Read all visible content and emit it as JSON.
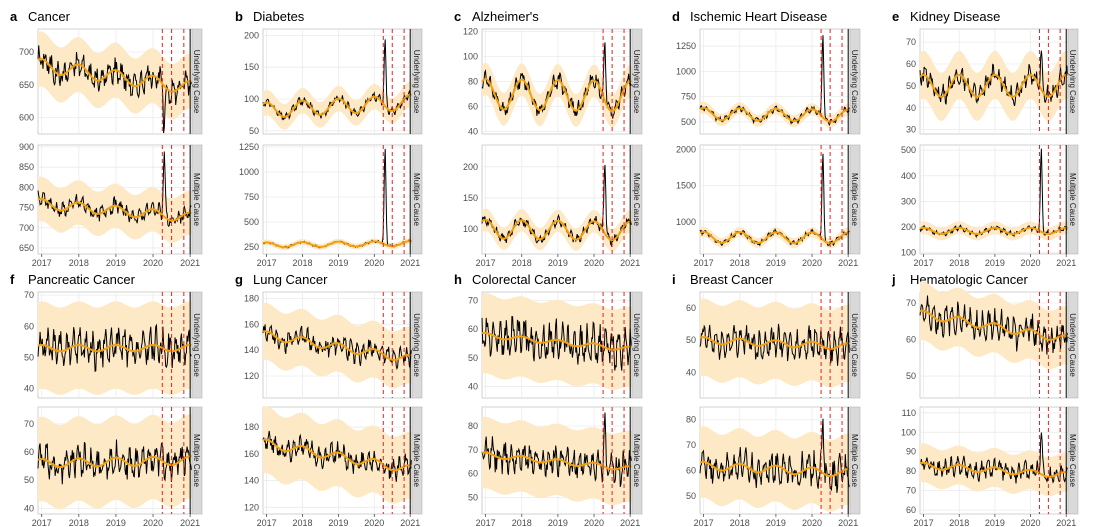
{
  "figure": {
    "strip_labels": {
      "top": "Underlying Cause",
      "bottom": "Multiple Cause"
    },
    "x_ticks": [
      "2017",
      "2018",
      "2019",
      "2020",
      "2021"
    ],
    "x_range": [
      2016.9,
      2021.05
    ],
    "event_lines": [
      2020.25,
      2020.5,
      2020.83
    ],
    "year_line": 2021.0,
    "colors": {
      "observed": "#000000",
      "expected": "#f3a010",
      "band": "#fde9c5",
      "event": "#e8201e",
      "grid": "#ebebeb",
      "strip": "#d9d9d9",
      "frame": "#4d4d4d"
    }
  },
  "chart_data": [
    {
      "type": "line",
      "letter": "a",
      "title": "Cancer",
      "top": {
        "ylim": [
          575,
          735
        ],
        "yticks": [
          600,
          650,
          700
        ],
        "trend_start": 680,
        "trend_end": 645,
        "amp": 10,
        "band": 42,
        "noise": 12,
        "spike": -65,
        "seed": 1
      },
      "bottom": {
        "ylim": [
          635,
          905
        ],
        "yticks": [
          650,
          700,
          750,
          800,
          850,
          900
        ],
        "trend_start": 760,
        "trend_end": 725,
        "amp": 12,
        "band": 55,
        "noise": 12,
        "spike": 160,
        "seed": 2
      }
    },
    {
      "type": "line",
      "letter": "b",
      "title": "Diabetes",
      "top": {
        "ylim": [
          45,
          210
        ],
        "yticks": [
          50,
          100,
          150,
          200
        ],
        "trend_start": 82,
        "trend_end": 95,
        "amp": 12,
        "band": 20,
        "noise": 4,
        "spike": 105,
        "seed": 3
      },
      "bottom": {
        "ylim": [
          180,
          1270
        ],
        "yticks": [
          250,
          500,
          750,
          1000,
          1250
        ],
        "trend_start": 270,
        "trend_end": 285,
        "amp": 25,
        "band": 30,
        "noise": 6,
        "spike": 960,
        "seed": 4
      }
    },
    {
      "type": "line",
      "letter": "c",
      "title": "Alzheimer's",
      "top": {
        "ylim": [
          38,
          122
        ],
        "yticks": [
          40,
          60,
          80,
          100,
          120
        ],
        "trend_start": 70,
        "trend_end": 68,
        "amp": 12,
        "band": 13,
        "noise": 4,
        "spike": 48,
        "seed": 5
      },
      "bottom": {
        "ylim": [
          60,
          235
        ],
        "yticks": [
          100,
          150,
          200
        ],
        "trend_start": 100,
        "trend_end": 97,
        "amp": 15,
        "band": 18,
        "noise": 5,
        "spike": 120,
        "seed": 6
      }
    },
    {
      "type": "line",
      "letter": "d",
      "title": "Ischemic Heart Disease",
      "top": {
        "ylim": [
          380,
          1420
        ],
        "yticks": [
          500,
          750,
          1000,
          1250
        ],
        "trend_start": 580,
        "trend_end": 560,
        "amp": 60,
        "band": 60,
        "noise": 18,
        "spike": 830,
        "seed": 7
      },
      "bottom": {
        "ylim": [
          560,
          2060
        ],
        "yticks": [
          1000,
          1500,
          2000
        ],
        "trend_start": 790,
        "trend_end": 780,
        "amp": 75,
        "band": 70,
        "noise": 20,
        "spike": 1200,
        "seed": 8
      }
    },
    {
      "type": "line",
      "letter": "e",
      "title": "Kidney Disease",
      "top": {
        "ylim": [
          28,
          76
        ],
        "yticks": [
          30,
          40,
          50,
          60,
          70
        ],
        "trend_start": 50,
        "trend_end": 50,
        "amp": 5,
        "band": 11,
        "noise": 3,
        "spike": 18,
        "seed": 9
      },
      "bottom": {
        "ylim": [
          95,
          520
        ],
        "yticks": [
          100,
          200,
          300,
          400,
          500
        ],
        "trend_start": 185,
        "trend_end": 185,
        "amp": 12,
        "band": 25,
        "noise": 6,
        "spike": 320,
        "seed": 10
      }
    },
    {
      "type": "line",
      "letter": "f",
      "title": "Pancreatic Cancer",
      "top": {
        "ylim": [
          37,
          71
        ],
        "yticks": [
          40,
          50,
          60,
          70
        ],
        "trend_start": 53,
        "trend_end": 53,
        "amp": 1,
        "band": 14,
        "noise": 3.5,
        "spike": 0,
        "seed": 11
      },
      "bottom": {
        "ylim": [
          38,
          76
        ],
        "yticks": [
          40,
          50,
          60,
          70
        ],
        "trend_start": 56,
        "trend_end": 57,
        "amp": 1.5,
        "band": 15,
        "noise": 3.5,
        "spike": 0,
        "seed": 12
      }
    },
    {
      "type": "line",
      "letter": "g",
      "title": "Lung Cancer",
      "top": {
        "ylim": [
          103,
          185
        ],
        "yticks": [
          120,
          140,
          160,
          180
        ],
        "trend_start": 152,
        "trend_end": 133,
        "amp": 3,
        "band": 22,
        "noise": 5,
        "spike": 0,
        "seed": 13
      },
      "bottom": {
        "ylim": [
          115,
          195
        ],
        "yticks": [
          120,
          140,
          160,
          180
        ],
        "trend_start": 168,
        "trend_end": 148,
        "amp": 3,
        "band": 25,
        "noise": 5,
        "spike": 0,
        "seed": 14
      }
    },
    {
      "type": "line",
      "letter": "h",
      "title": "Colorectal Cancer",
      "top": {
        "ylim": [
          36,
          73
        ],
        "yticks": [
          40,
          50,
          60,
          70
        ],
        "trend_start": 58,
        "trend_end": 53,
        "amp": 0.8,
        "band": 14,
        "noise": 4,
        "spike": 0,
        "seed": 15
      },
      "bottom": {
        "ylim": [
          43,
          88
        ],
        "yticks": [
          50,
          60,
          70,
          80
        ],
        "trend_start": 68,
        "trend_end": 62,
        "amp": 1,
        "band": 15,
        "noise": 4,
        "spike": 18,
        "seed": 16
      }
    },
    {
      "type": "line",
      "letter": "i",
      "title": "Breast Cancer",
      "top": {
        "ylim": [
          32,
          65
        ],
        "yticks": [
          40,
          50,
          60
        ],
        "trend_start": 50,
        "trend_end": 48,
        "amp": 1,
        "band": 12,
        "noise": 3,
        "spike": 0,
        "seed": 17
      },
      "bottom": {
        "ylim": [
          43,
          85
        ],
        "yticks": [
          50,
          60,
          70,
          80
        ],
        "trend_start": 62,
        "trend_end": 59,
        "amp": 1.5,
        "band": 14,
        "noise": 4,
        "spike": 20,
        "seed": 18
      }
    },
    {
      "type": "line",
      "letter": "j",
      "title": "Hematologic Cancer",
      "top": {
        "ylim": [
          44,
          73
        ],
        "yticks": [
          50,
          60,
          70
        ],
        "trend_start": 67,
        "trend_end": 60,
        "amp": 1,
        "band": 8,
        "noise": 2.5,
        "spike": 0,
        "seed": 19
      },
      "bottom": {
        "ylim": [
          58,
          113
        ],
        "yticks": [
          60,
          70,
          80,
          90,
          100,
          110
        ],
        "trend_start": 83,
        "trend_end": 78,
        "amp": 1.5,
        "band": 10,
        "noise": 3,
        "spike": 25,
        "seed": 20
      }
    }
  ]
}
